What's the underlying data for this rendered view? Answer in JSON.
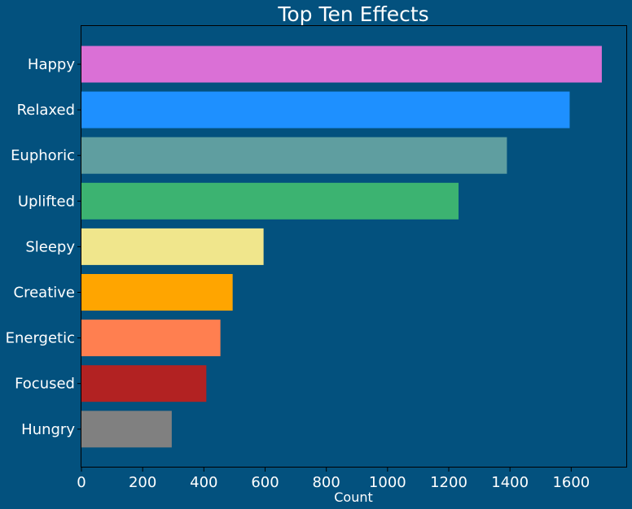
{
  "chart_data": {
    "type": "bar",
    "orientation": "horizontal",
    "title": "Top Ten Effects",
    "xlabel": "Count",
    "ylabel": "",
    "xlim": [
      0,
      1780
    ],
    "xticks": [
      0,
      200,
      400,
      600,
      800,
      1000,
      1200,
      1400,
      1600
    ],
    "grid": false,
    "background_color": "#03517e",
    "categories": [
      "Happy",
      "Relaxed",
      "Euphoric",
      "Uplifted",
      "Sleepy",
      "Creative",
      "Energetic",
      "Focused",
      "Hungry"
    ],
    "values": [
      1700,
      1595,
      1390,
      1232,
      595,
      494,
      454,
      408,
      295
    ],
    "colors": [
      "#da70d6",
      "#1e90ff",
      "#5f9ea0",
      "#3cb371",
      "#f0e68c",
      "#ffa500",
      "#ff7f50",
      "#b22222",
      "#808080"
    ]
  }
}
